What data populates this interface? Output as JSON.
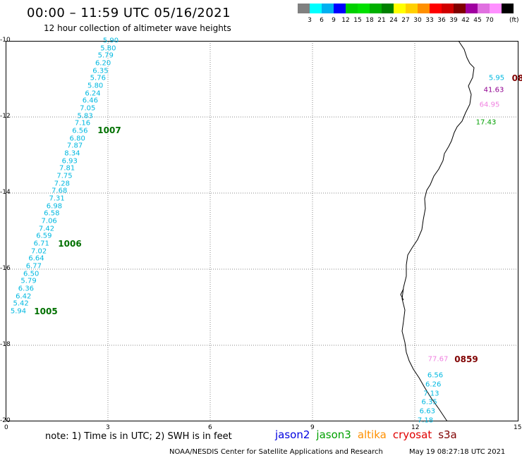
{
  "header": {
    "title": "00:00 – 11:59 UTC 05/16/2021",
    "subtitle": "12 hour collection of altimeter wave heights"
  },
  "legend": {
    "swatches": [
      {
        "color": "#808080",
        "label": ""
      },
      {
        "color": "#00ffff",
        "label": "3"
      },
      {
        "color": "#00b0f0",
        "label": "6"
      },
      {
        "color": "#0000ff",
        "label": "9"
      },
      {
        "color": "#00d000",
        "label": "12"
      },
      {
        "color": "#00e000",
        "label": "15"
      },
      {
        "color": "#00b000",
        "label": "18"
      },
      {
        "color": "#008000",
        "label": "21"
      },
      {
        "color": "#ffff00",
        "label": "24"
      },
      {
        "color": "#ffd000",
        "label": "27"
      },
      {
        "color": "#ff9000",
        "label": "30"
      },
      {
        "color": "#ff0000",
        "label": "33"
      },
      {
        "color": "#d00000",
        "label": "36"
      },
      {
        "color": "#800000",
        "label": "39"
      },
      {
        "color": "#a000a0",
        "label": "42"
      },
      {
        "color": "#e070e0",
        "label": "45"
      },
      {
        "color": "#ff90ff",
        "label": "70"
      },
      {
        "color": "#000000",
        "label": ""
      }
    ],
    "unit": "(ft)"
  },
  "axes": {
    "y_ticks": [
      "-10",
      "-12",
      "-14",
      "-16",
      "-18",
      "-20"
    ],
    "x_ticks": [
      "0",
      "3",
      "6",
      "9",
      "12",
      "15"
    ]
  },
  "track_left": {
    "values": [
      "5.90",
      "5.80",
      "5.79",
      "6.20",
      "6.35",
      "5.76",
      "5.80",
      "6.24",
      "6.46",
      "7.05",
      "5.83",
      "7.16",
      "6.56",
      "6.80",
      "7.87",
      "8.34",
      "6.93",
      "7.81",
      "7.75",
      "7.28",
      "7.68",
      "7.31",
      "6.98",
      "6.58",
      "7.06",
      "7.42",
      "6.59",
      "6.71",
      "7.02",
      "6.64",
      "6.77",
      "6.50",
      "5.79",
      "6.36",
      "6.42",
      "5.42",
      "5.94"
    ],
    "ids": [
      "1007",
      "1006",
      "1005"
    ]
  },
  "track_right": {
    "top": {
      "cyan": "5.95",
      "id": "08",
      "purple": "41.63",
      "pink": "64.95",
      "green": "17.43"
    },
    "bottom": {
      "pink": "77.67",
      "id": "0859",
      "values": [
        "6.56",
        "6.26",
        "7.13",
        "6.35",
        "6.63",
        "7.18"
      ]
    }
  },
  "footer": {
    "note": "note: 1) Time is in UTC; 2) SWH is in feet",
    "satellites": [
      {
        "name": "jason2",
        "color": "#0000e0"
      },
      {
        "name": "jason3",
        "color": "#00a000"
      },
      {
        "name": "altika",
        "color": "#ff9000"
      },
      {
        "name": "cryosat",
        "color": "#e00000"
      },
      {
        "name": "s3a",
        "color": "#800000"
      }
    ],
    "credit": "NOAA/NESDIS Center for Satellite Applications and Research",
    "timestamp": "May 19 08:27:18 UTC 2021"
  }
}
